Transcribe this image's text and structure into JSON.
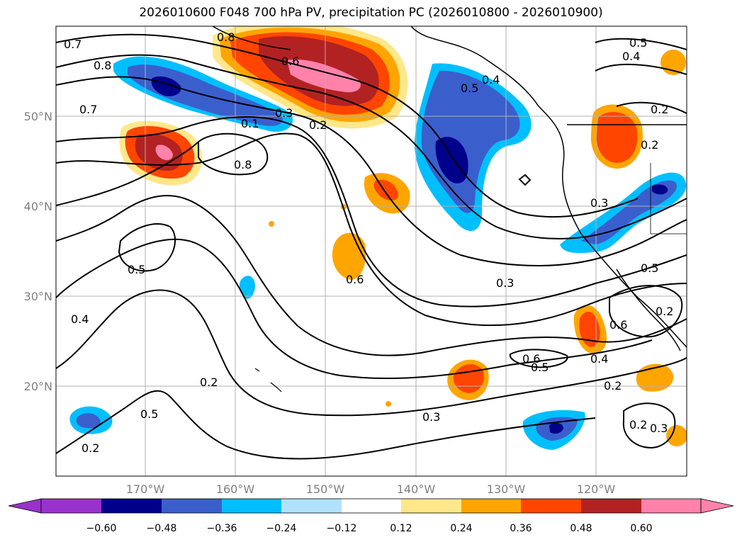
{
  "title": "2026010600 F048 700 hPa PV, precipitation PC (2026010800 - 2026010900)",
  "map": {
    "lat_axis": {
      "min": 10,
      "max": 60,
      "ticks": [
        "20°N",
        "30°N",
        "40°N",
        "50°N"
      ],
      "tick_values": [
        20,
        30,
        40,
        50
      ]
    },
    "lon_axis": {
      "min": -180,
      "max": -110,
      "ticks": [
        "170°W",
        "160°W",
        "150°W",
        "140°W",
        "130°W",
        "120°W"
      ],
      "tick_values": [
        -170,
        -160,
        -150,
        -140,
        -130,
        -120
      ]
    },
    "pv_contour_labels": [
      "0.7",
      "0.8",
      "0.7",
      "0.8",
      "0.6",
      "0.1",
      "0.3",
      "0.2",
      "0.8",
      "0.5",
      "0.5",
      "0.4",
      "0.2",
      "0.2",
      "0.3",
      "0.5",
      "0.4",
      "0.2",
      "0.6",
      "0.5",
      "0.4",
      "0.2",
      "0.3",
      "0.2",
      "0.6",
      "0.5",
      "0.2",
      "0.5",
      "0.6",
      "0.3",
      "0.4",
      "0.2",
      "0.3"
    ]
  },
  "colorbar": {
    "labels": [
      "−0.60",
      "−0.48",
      "−0.36",
      "−0.24",
      "−0.12",
      "0.12",
      "0.24",
      "0.36",
      "0.48",
      "0.60"
    ],
    "colors": [
      "#9932CC",
      "#00008B",
      "#3A5FCD",
      "#00BFFF",
      "#B0E2FF",
      "#FFFFFF",
      "#FFE78A",
      "#FFA500",
      "#FF4500",
      "#B22222",
      "#FF82AB"
    ]
  }
}
